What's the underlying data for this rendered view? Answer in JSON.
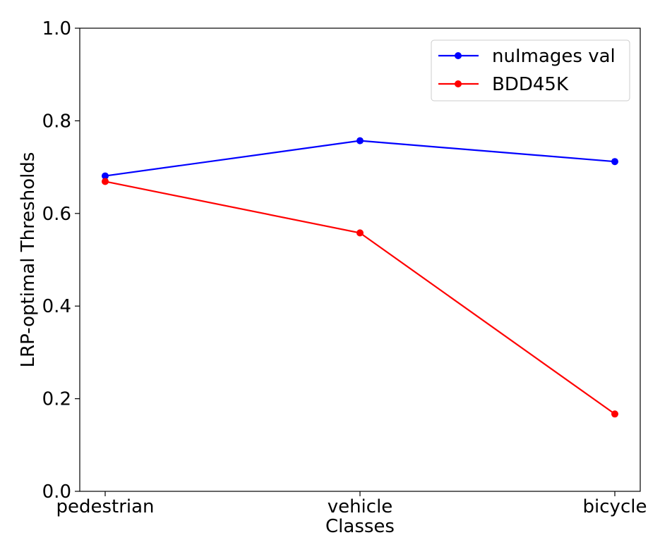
{
  "chart_data": {
    "type": "line",
    "title": "",
    "xlabel": "Classes",
    "ylabel": "LRP-optimal Thresholds",
    "categories": [
      "pedestrian",
      "vehicle",
      "bicycle"
    ],
    "ylim": [
      0.0,
      1.0
    ],
    "yticks": [
      "0.0",
      "0.2",
      "0.4",
      "0.6",
      "0.8",
      "1.0"
    ],
    "grid": false,
    "legend_position": "top-right",
    "series": [
      {
        "name": "nuImages val",
        "color": "#0000ff",
        "values": [
          0.681,
          0.757,
          0.712
        ]
      },
      {
        "name": "BDD45K",
        "color": "#ff0000",
        "values": [
          0.669,
          0.558,
          0.167
        ]
      }
    ]
  }
}
